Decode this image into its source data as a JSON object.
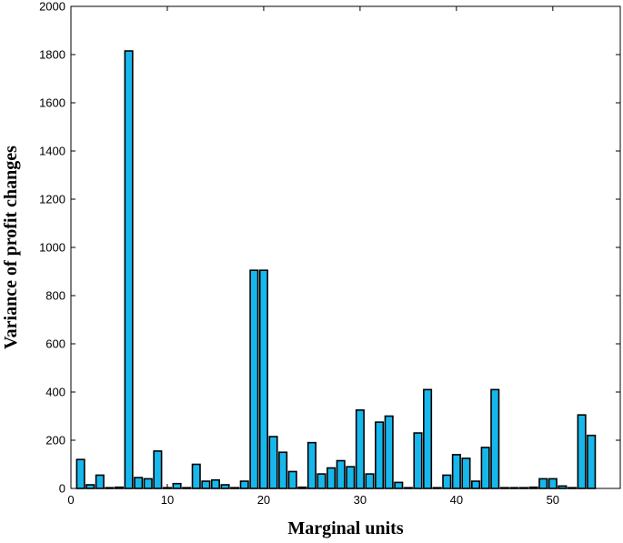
{
  "chart_data": {
    "type": "bar",
    "xlabel": "Marginal units",
    "ylabel": "Variance of profit changes",
    "xlim": [
      0,
      57
    ],
    "ylim": [
      0,
      2000
    ],
    "xticks": [
      0,
      10,
      20,
      30,
      40,
      50
    ],
    "yticks": [
      0,
      200,
      400,
      600,
      800,
      1000,
      1200,
      1400,
      1600,
      1800,
      2000
    ],
    "grid": false,
    "bar_color": "#17b7ec",
    "x": [
      1,
      2,
      3,
      4,
      5,
      6,
      7,
      8,
      9,
      10,
      11,
      12,
      13,
      14,
      15,
      16,
      17,
      18,
      19,
      20,
      21,
      22,
      23,
      24,
      25,
      26,
      27,
      28,
      29,
      30,
      31,
      32,
      33,
      34,
      35,
      36,
      37,
      38,
      39,
      40,
      41,
      42,
      43,
      44,
      45,
      46,
      47,
      48,
      49,
      50,
      51,
      52,
      53,
      54
    ],
    "values": [
      120,
      15,
      55,
      0,
      5,
      1815,
      45,
      40,
      155,
      0,
      20,
      0,
      100,
      30,
      35,
      15,
      0,
      30,
      905,
      905,
      215,
      150,
      70,
      5,
      190,
      60,
      85,
      115,
      90,
      325,
      60,
      275,
      300,
      25,
      0,
      230,
      410,
      0,
      55,
      140,
      125,
      30,
      170,
      410,
      0,
      0,
      0,
      5,
      40,
      40,
      10,
      0,
      305,
      220
    ]
  }
}
